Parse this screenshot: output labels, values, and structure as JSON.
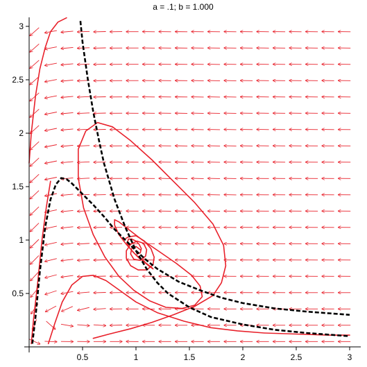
{
  "chart_data": {
    "type": "line",
    "title": "a = .1;   b = 1.000",
    "xlabel": "",
    "ylabel": "",
    "xlim": [
      0,
      3.05
    ],
    "ylim": [
      0,
      3.05
    ],
    "xticks": [
      {
        "value": 0.5,
        "label": "0.5"
      },
      {
        "value": 1,
        "label": "1"
      },
      {
        "value": 1.5,
        "label": "1.5"
      },
      {
        "value": 2,
        "label": "2"
      },
      {
        "value": 2.5,
        "label": "2.5"
      },
      {
        "value": 3,
        "label": "3"
      }
    ],
    "yticks": [
      {
        "value": 0.5,
        "label": "0.5"
      },
      {
        "value": 1,
        "label": "1"
      },
      {
        "value": 1.5,
        "label": "1.5"
      },
      {
        "value": 2,
        "label": "2"
      },
      {
        "value": 2.5,
        "label": "2.5"
      },
      {
        "value": 3,
        "label": "3"
      }
    ],
    "colors": {
      "field": "#e8202a",
      "nullcline": "#000000"
    },
    "grid": false,
    "vector_field": {
      "x_range": [
        0.05,
        2.95
      ],
      "y_range": [
        0.05,
        2.95
      ],
      "samples": 20,
      "arrow_length": 0.115
    },
    "nullclines": [
      {
        "style": "dashed",
        "x": [
          0.03,
          0.06,
          0.1,
          0.15,
          0.2,
          0.25,
          0.3,
          0.35,
          0.4,
          0.5,
          0.6,
          0.7,
          0.8,
          0.9,
          1.0,
          1.1,
          1.2,
          1.4,
          1.6,
          1.8,
          2.0,
          2.3,
          2.6,
          3.0
        ],
        "y": [
          0.03,
          0.28,
          0.7,
          1.12,
          1.38,
          1.52,
          1.58,
          1.57,
          1.53,
          1.43,
          1.33,
          1.22,
          1.1,
          1.0,
          0.9,
          0.81,
          0.73,
          0.61,
          0.53,
          0.46,
          0.41,
          0.36,
          0.33,
          0.3
        ]
      },
      {
        "style": "dashed",
        "x": [
          0.48,
          0.5,
          0.55,
          0.6,
          0.65,
          0.7,
          0.8,
          0.9,
          1.0,
          1.1,
          1.2,
          1.3,
          1.5,
          1.7,
          2.0,
          2.3,
          2.6,
          3.0
        ],
        "y": [
          3.05,
          2.85,
          2.5,
          2.2,
          1.95,
          1.72,
          1.38,
          1.12,
          0.9,
          0.73,
          0.6,
          0.5,
          0.37,
          0.28,
          0.21,
          0.16,
          0.13,
          0.1
        ]
      }
    ],
    "trajectories": [
      {
        "name": "",
        "x": [
          0.0,
          0.02,
          0.06,
          0.1,
          0.15,
          0.2,
          0.27,
          0.35
        ],
        "y": [
          1.72,
          2.0,
          2.35,
          2.6,
          2.8,
          2.95,
          3.04,
          3.08
        ]
      },
      {
        "name": "",
        "x": [
          0.02,
          0.04,
          0.08,
          0.12,
          0.16,
          0.2
        ],
        "y": [
          0.03,
          0.25,
          0.6,
          1.0,
          1.3,
          1.55
        ]
      },
      {
        "name": "",
        "x": [
          0.18,
          0.24,
          0.31,
          0.4,
          0.5,
          0.6,
          0.72,
          0.86,
          1.0,
          1.2,
          1.45,
          1.7,
          1.95,
          2.2,
          2.5,
          2.8,
          3.0
        ],
        "y": [
          0.03,
          0.22,
          0.42,
          0.58,
          0.66,
          0.67,
          0.62,
          0.52,
          0.42,
          0.32,
          0.24,
          0.18,
          0.15,
          0.13,
          0.12,
          0.11,
          0.11
        ]
      },
      {
        "name": "",
        "x": [
          0.6,
          0.75,
          0.95,
          1.15,
          1.35,
          1.55,
          1.72,
          1.8,
          1.84,
          1.82,
          1.72,
          1.55,
          1.35,
          1.15,
          0.95,
          0.78,
          0.64,
          0.53,
          0.46,
          0.46,
          0.51,
          0.6,
          0.71,
          0.84,
          0.98,
          1.13,
          1.28,
          1.43,
          1.55,
          1.62,
          1.6,
          1.52,
          1.38,
          1.22,
          1.06,
          0.93,
          0.84,
          0.8,
          0.8,
          0.84,
          0.91,
          0.99,
          1.07,
          1.13,
          1.16,
          1.15,
          1.1,
          1.03,
          0.97,
          0.93,
          0.92,
          0.93,
          0.96,
          1.0,
          1.03,
          1.05,
          1.04,
          1.01
        ],
        "y": [
          0.08,
          0.12,
          0.17,
          0.23,
          0.3,
          0.38,
          0.48,
          0.6,
          0.76,
          0.95,
          1.15,
          1.35,
          1.55,
          1.75,
          1.93,
          2.06,
          2.1,
          2.02,
          1.85,
          1.58,
          1.3,
          1.05,
          0.84,
          0.66,
          0.53,
          0.43,
          0.37,
          0.36,
          0.39,
          0.47,
          0.57,
          0.67,
          0.78,
          0.89,
          1.0,
          1.1,
          1.17,
          1.19,
          1.14,
          1.05,
          0.96,
          0.87,
          0.8,
          0.75,
          0.73,
          0.74,
          0.78,
          0.83,
          0.89,
          0.94,
          0.98,
          1.01,
          1.01,
          0.99,
          0.96,
          0.92,
          0.88,
          0.87
        ]
      },
      {
        "name": "",
        "x": [
          0.88,
          0.93,
          1.0,
          1.08,
          1.14,
          1.17,
          1.16,
          1.1,
          1.02,
          0.95,
          0.91,
          0.91,
          0.95,
          1.01,
          1.07,
          1.1,
          1.09,
          1.04,
          0.98,
          0.95,
          0.96,
          1.0,
          1.04
        ],
        "y": [
          1.0,
          1.03,
          1.04,
          0.99,
          0.92,
          0.84,
          0.77,
          0.72,
          0.72,
          0.76,
          0.83,
          0.9,
          0.96,
          0.99,
          0.97,
          0.91,
          0.85,
          0.81,
          0.82,
          0.87,
          0.92,
          0.94,
          0.91
        ]
      }
    ]
  }
}
